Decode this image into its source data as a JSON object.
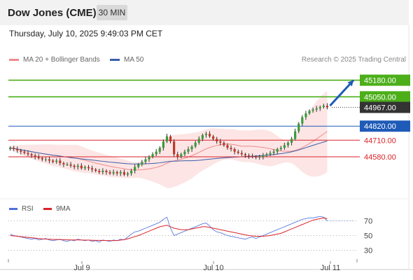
{
  "header": {
    "title": "Dow Jones (CME)",
    "timeframe": "30 MIN"
  },
  "date_text": "Thursday, July 10, 2025 9:49:03 PM CET",
  "legend": {
    "ma20": "MA 20 + Bollinger Bands",
    "ma50": "MA 50"
  },
  "credit": "Research © 2025 Trading Central",
  "rsi_legend": {
    "rsi": "RSI",
    "ma": "9MA"
  },
  "colors": {
    "green": "#4caf1a",
    "blue": "#1e5bb8",
    "red": "#d9232a",
    "dark": "#333333",
    "band": "#fde0e0",
    "ma20": "#f08a8a",
    "ma50": "#3b5ea8"
  },
  "chart_data": [
    {
      "type": "line",
      "series_kind": "candlestick price with MA20, Bollinger Bands, MA50",
      "ylim": [
        44300,
        45260
      ],
      "levels": [
        {
          "value": 45180,
          "label": "45180.00",
          "color": "#4caf1a",
          "style": "solid"
        },
        {
          "value": 45050,
          "label": "45050.00",
          "color": "#4caf1a",
          "style": "solid"
        },
        {
          "value": 44967,
          "label": "44967.00",
          "color": "#333333",
          "style": "dotted"
        },
        {
          "value": 44820,
          "label": "44820.00",
          "color": "#1e5bb8",
          "style": "solid"
        },
        {
          "value": 44710,
          "label": "44710.00",
          "color": "#d9232a",
          "style": "solid"
        },
        {
          "value": 44580,
          "label": "44580.00",
          "color": "#d9232a",
          "style": "solid"
        }
      ],
      "x_ticks": [
        "Jul 9",
        "Jul 10",
        "Jul 11"
      ],
      "closes": [
        44650,
        44640,
        44630,
        44620,
        44610,
        44600,
        44590,
        44580,
        44570,
        44560,
        44560,
        44550,
        44540,
        44550,
        44530,
        44520,
        44520,
        44510,
        44500,
        44510,
        44490,
        44500,
        44490,
        44480,
        44470,
        44460,
        44470,
        44460,
        44450,
        44460,
        44450,
        44460,
        44440,
        44450,
        44470,
        44500,
        44520,
        44540,
        44560,
        44580,
        44600,
        44620,
        44650,
        44700,
        44740,
        44700,
        44600,
        44580,
        44600,
        44620,
        44640,
        44660,
        44690,
        44720,
        44750,
        44760,
        44740,
        44720,
        44700,
        44690,
        44670,
        44650,
        44640,
        44620,
        44610,
        44600,
        44590,
        44585,
        44580,
        44575,
        44580,
        44590,
        44600,
        44610,
        44620,
        44640,
        44650,
        44670,
        44690,
        44720,
        44780,
        44840,
        44890,
        44920,
        44940,
        44950,
        44960,
        44970,
        44980,
        44967
      ],
      "projection": {
        "from": 44980,
        "to": 45180
      }
    },
    {
      "type": "line",
      "name": "RSI",
      "ylim": [
        20,
        80
      ],
      "y_ticks": [
        "70",
        "50",
        "30"
      ],
      "rsi": [
        52,
        50,
        49,
        48,
        47,
        46,
        45,
        46,
        44,
        45,
        46,
        44,
        43,
        44,
        45,
        43,
        42,
        44,
        43,
        45,
        44,
        43,
        44,
        42,
        43,
        41,
        44,
        43,
        42,
        44,
        43,
        45,
        44,
        48,
        52,
        55,
        56,
        58,
        60,
        62,
        64,
        66,
        68,
        72,
        75,
        60,
        50,
        52,
        54,
        56,
        58,
        60,
        62,
        64,
        66,
        67,
        63,
        58,
        55,
        54,
        52,
        50,
        49,
        48,
        47,
        46,
        45,
        47,
        48,
        46,
        48,
        50,
        52,
        54,
        56,
        58,
        60,
        62,
        64,
        66,
        68,
        70,
        72,
        73,
        74,
        74,
        75,
        76,
        75,
        70
      ],
      "ma9": [
        50,
        49.5,
        49,
        48.5,
        48,
        47.5,
        47,
        46.5,
        46,
        45.5,
        45.2,
        45,
        44.8,
        44.6,
        44.5,
        44.3,
        44.2,
        44.1,
        44,
        44,
        43.9,
        43.8,
        43.8,
        43.6,
        43.5,
        43.4,
        43.3,
        43.2,
        43.1,
        43.1,
        43.3,
        43.8,
        44.5,
        45.5,
        47,
        48.5,
        50,
        52,
        54,
        56,
        58,
        60,
        62,
        63,
        64,
        62,
        60,
        59,
        58,
        58,
        58,
        59,
        60,
        61,
        62,
        62,
        61,
        60,
        59,
        58,
        57,
        56,
        55,
        54,
        53,
        52,
        51,
        50,
        49.5,
        49,
        49,
        49,
        49.5,
        50,
        51,
        52,
        53,
        55,
        57,
        59,
        61,
        63,
        65,
        67,
        69,
        71,
        72,
        73,
        74,
        73
      ]
    }
  ]
}
